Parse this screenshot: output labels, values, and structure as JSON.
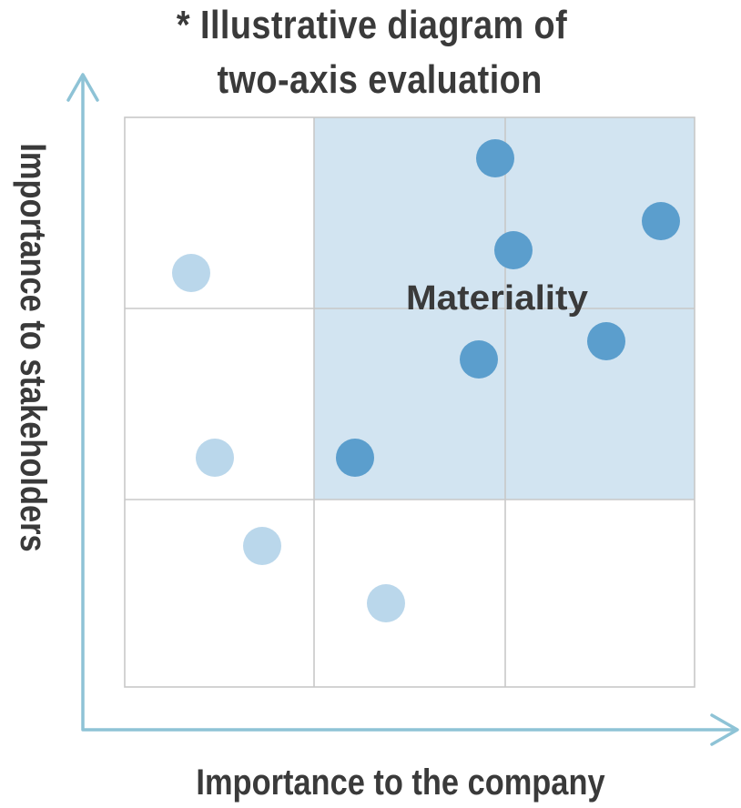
{
  "title": {
    "line1": "* Illustrative diagram of",
    "line2": "two-axis evaluation"
  },
  "axes": {
    "x_label": "Importance to the company",
    "y_label": "Importance to stakeholders"
  },
  "highlight_region": {
    "label": "Materiality",
    "fill": "#d2e4f1"
  },
  "colors": {
    "axis_arrow": "#8ec3d6",
    "grid_line": "#c8c8c8",
    "material_point": "#5b9ecd",
    "other_point": "#bad7eb",
    "text": "#3a3a3a"
  }
}
